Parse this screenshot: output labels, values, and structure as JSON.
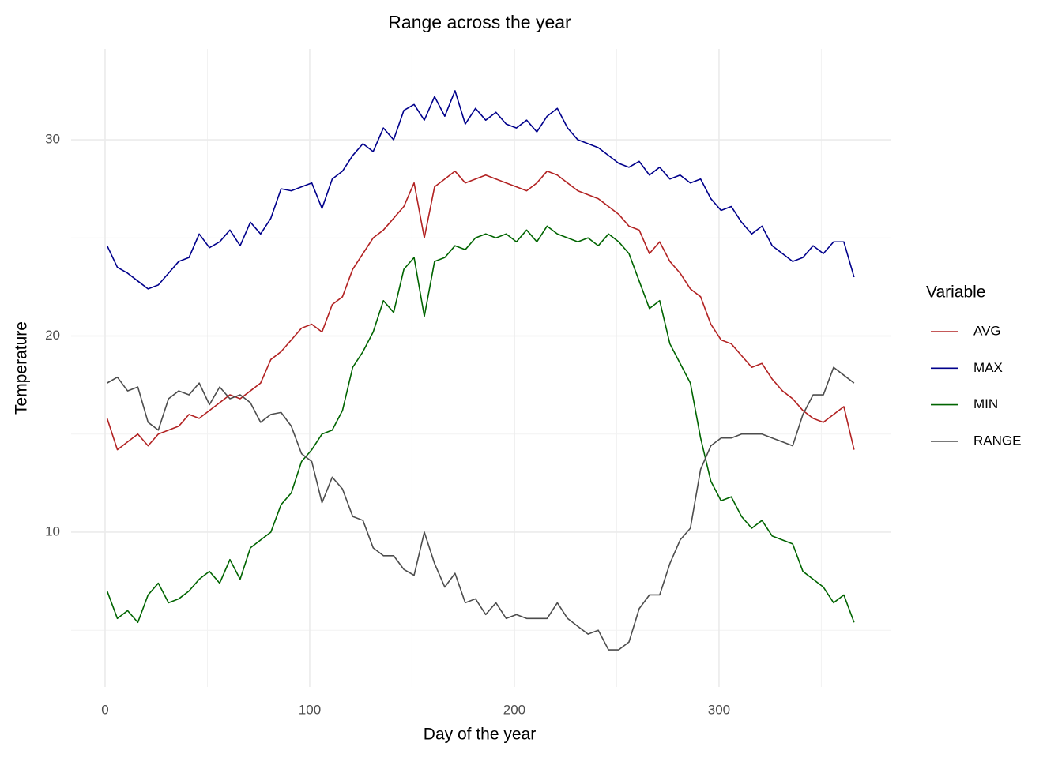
{
  "chart_data": {
    "type": "line",
    "title": "Range across the year",
    "x_label": "Day of the year",
    "y_label": "Temperature",
    "legend_title": "Variable",
    "legend": "right",
    "grid": true,
    "xlim": [
      -16.6,
      384.2
    ],
    "ylim": [
      2.11,
      34.63
    ],
    "xticks": [
      0,
      100,
      200,
      300
    ],
    "yticks": [
      10,
      20,
      30
    ],
    "xminorticks": [
      50,
      150,
      250,
      350
    ],
    "yminorticks": [
      5,
      15,
      25
    ],
    "x": [
      1,
      6,
      11,
      16,
      21,
      26,
      31,
      36,
      41,
      46,
      51,
      56,
      61,
      66,
      71,
      76,
      81,
      86,
      91,
      96,
      101,
      106,
      111,
      116,
      121,
      126,
      131,
      136,
      141,
      146,
      151,
      156,
      161,
      166,
      171,
      176,
      181,
      186,
      191,
      196,
      201,
      206,
      211,
      216,
      221,
      226,
      231,
      236,
      241,
      246,
      251,
      256,
      261,
      266,
      271,
      276,
      281,
      286,
      291,
      296,
      301,
      306,
      311,
      316,
      321,
      326,
      331,
      336,
      341,
      346,
      351,
      356,
      361,
      366
    ],
    "series": [
      {
        "name": "AVG",
        "color": "#b22222",
        "values": [
          15.8,
          14.2,
          14.6,
          15.0,
          14.4,
          15.0,
          15.2,
          15.4,
          16.0,
          15.8,
          16.2,
          16.6,
          17.0,
          16.8,
          17.2,
          17.6,
          18.8,
          19.2,
          19.8,
          20.4,
          20.6,
          20.2,
          21.6,
          22.0,
          23.4,
          24.2,
          25.0,
          25.4,
          26.0,
          26.6,
          27.8,
          25.0,
          27.6,
          28.0,
          28.4,
          27.8,
          28.0,
          28.2,
          28.0,
          27.8,
          27.6,
          27.4,
          27.8,
          28.4,
          28.2,
          27.8,
          27.4,
          27.2,
          27.0,
          26.6,
          26.2,
          25.6,
          25.4,
          24.2,
          24.8,
          23.8,
          23.2,
          22.4,
          22.0,
          20.6,
          19.8,
          19.6,
          19.0,
          18.4,
          18.6,
          17.8,
          17.2,
          16.8,
          16.2,
          15.8,
          15.6,
          16.0,
          16.4,
          14.2
        ]
      },
      {
        "name": "MAX",
        "color": "#00008b",
        "values": [
          24.6,
          23.5,
          23.2,
          22.8,
          22.4,
          22.6,
          23.2,
          23.8,
          24.0,
          25.2,
          24.5,
          24.8,
          25.4,
          24.6,
          25.8,
          25.2,
          26.0,
          27.5,
          27.4,
          27.6,
          27.8,
          26.5,
          28.0,
          28.4,
          29.2,
          29.8,
          29.4,
          30.6,
          30.0,
          31.5,
          31.8,
          31.0,
          32.2,
          31.2,
          32.5,
          30.8,
          31.6,
          31.0,
          31.4,
          30.8,
          30.6,
          31.0,
          30.4,
          31.2,
          31.6,
          30.6,
          30.0,
          29.8,
          29.6,
          29.2,
          28.8,
          28.6,
          28.9,
          28.2,
          28.6,
          28.0,
          28.2,
          27.8,
          28.0,
          27.0,
          26.4,
          26.6,
          25.8,
          25.2,
          25.6,
          24.6,
          24.2,
          23.8,
          24.0,
          24.6,
          24.2,
          24.8,
          24.8,
          23.0
        ]
      },
      {
        "name": "MIN",
        "color": "#006400",
        "values": [
          7.0,
          5.6,
          6.0,
          5.4,
          6.8,
          7.4,
          6.4,
          6.6,
          7.0,
          7.6,
          8.0,
          7.4,
          8.6,
          7.6,
          9.2,
          9.6,
          10.0,
          11.4,
          12.0,
          13.6,
          14.2,
          15.0,
          15.2,
          16.2,
          18.4,
          19.2,
          20.2,
          21.8,
          21.2,
          23.4,
          24.0,
          21.0,
          23.8,
          24.0,
          24.6,
          24.4,
          25.0,
          25.2,
          25.0,
          25.2,
          24.8,
          25.4,
          24.8,
          25.6,
          25.2,
          25.0,
          24.8,
          25.0,
          24.6,
          25.2,
          24.8,
          24.2,
          22.8,
          21.4,
          21.8,
          19.6,
          18.6,
          17.6,
          14.8,
          12.6,
          11.6,
          11.8,
          10.8,
          10.2,
          10.6,
          9.8,
          9.6,
          9.4,
          8.0,
          7.6,
          7.2,
          6.4,
          6.8,
          5.4
        ]
      },
      {
        "name": "RANGE",
        "color": "#4d4d4d",
        "values": [
          17.6,
          17.9,
          17.2,
          17.4,
          15.6,
          15.2,
          16.8,
          17.2,
          17.0,
          17.6,
          16.5,
          17.4,
          16.8,
          17.0,
          16.6,
          15.6,
          16.0,
          16.1,
          15.4,
          14.0,
          13.6,
          11.5,
          12.8,
          12.2,
          10.8,
          10.6,
          9.2,
          8.8,
          8.8,
          8.1,
          7.8,
          10.0,
          8.4,
          7.2,
          7.9,
          6.4,
          6.6,
          5.8,
          6.4,
          5.6,
          5.8,
          5.6,
          5.6,
          5.6,
          6.4,
          5.6,
          5.2,
          4.8,
          5.0,
          4.0,
          4.0,
          4.4,
          6.1,
          6.8,
          6.8,
          8.4,
          9.6,
          10.2,
          13.2,
          14.4,
          14.8,
          14.8,
          15.0,
          15.0,
          15.0,
          14.8,
          14.6,
          14.4,
          16.0,
          17.0,
          17.0,
          18.4,
          18.0,
          17.6
        ]
      }
    ]
  }
}
